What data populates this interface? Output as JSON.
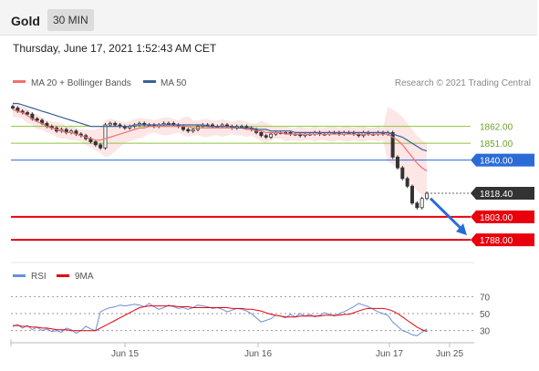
{
  "header": {
    "title": "Gold",
    "timeframe": "30 MIN"
  },
  "timestamp": "Thursday, June 17, 2021 1:52:43 AM CET",
  "legend": {
    "ma20": "MA 20 + Bollinger Bands",
    "ma50": "MA 50",
    "credit": "Research © 2021 Trading Central"
  },
  "rsi_legend": {
    "rsi": "RSI",
    "ma9": "9MA"
  },
  "colors": {
    "ma20": "#f07070",
    "ma50": "#3a5f9a",
    "band": "#fde3e3",
    "support": "#e8000b",
    "resistance": "#8fc43a",
    "pivot": "#2a6bd8",
    "current": "#333333",
    "rsi": "#6a8fd8",
    "rsi_ma": "#e8000b"
  },
  "chart_data": [
    {
      "type": "candlestick",
      "title": "",
      "ylim": [
        1775,
        1885
      ],
      "x_ticks": [
        "Jun 15",
        "Jun 16",
        "Jun 17",
        "Jun 25"
      ],
      "levels": [
        {
          "label": "1862.00",
          "value": 1862,
          "kind": "resistance"
        },
        {
          "label": "1851.00",
          "value": 1851,
          "kind": "resistance"
        },
        {
          "label": "1840.00",
          "value": 1840,
          "kind": "pivot"
        },
        {
          "label": "1818.40",
          "value": 1818.4,
          "kind": "current"
        },
        {
          "label": "1803.00",
          "value": 1803,
          "kind": "support"
        },
        {
          "label": "1788.00",
          "value": 1788,
          "kind": "support"
        }
      ],
      "close_series": [
        1874,
        1872,
        1871,
        1870,
        1867,
        1866,
        1864,
        1862,
        1861,
        1859,
        1860,
        1858,
        1859,
        1857,
        1856,
        1854,
        1852,
        1850,
        1848,
        1863,
        1864,
        1863,
        1862,
        1861,
        1862,
        1863,
        1864,
        1863,
        1863,
        1862,
        1863,
        1864,
        1864,
        1863,
        1862,
        1860,
        1859,
        1860,
        1862,
        1863,
        1863,
        1862,
        1862,
        1863,
        1862,
        1861,
        1862,
        1862,
        1861,
        1860,
        1858,
        1856,
        1855,
        1857,
        1858,
        1858,
        1858,
        1857,
        1857,
        1856,
        1857,
        1857,
        1858,
        1857,
        1857,
        1858,
        1858,
        1857,
        1858,
        1858,
        1857,
        1856,
        1858,
        1857,
        1857,
        1858,
        1857,
        1858,
        1842,
        1835,
        1828,
        1823,
        1812,
        1809,
        1815,
        1818.4
      ],
      "ma20_series": [
        1873,
        1872,
        1871,
        1869,
        1867,
        1865,
        1864,
        1862,
        1861,
        1860,
        1859,
        1858,
        1858,
        1857,
        1856,
        1855,
        1854,
        1853,
        1853,
        1854,
        1855,
        1856,
        1857,
        1858,
        1859,
        1860,
        1861,
        1861,
        1862,
        1862,
        1862,
        1862,
        1862,
        1862,
        1862,
        1862,
        1862,
        1861,
        1861,
        1861,
        1861,
        1861,
        1861,
        1861,
        1861,
        1861,
        1861,
        1861,
        1860,
        1860,
        1859,
        1859,
        1858,
        1858,
        1858,
        1858,
        1857,
        1857,
        1857,
        1857,
        1857,
        1857,
        1857,
        1857,
        1857,
        1857,
        1857,
        1857,
        1857,
        1857,
        1857,
        1857,
        1857,
        1857,
        1857,
        1857,
        1857,
        1857,
        1855,
        1853,
        1850,
        1846,
        1842,
        1838,
        1835,
        1833
      ],
      "ma50_series": [
        1877,
        1877,
        1876,
        1875,
        1874,
        1873,
        1872,
        1871,
        1870,
        1869,
        1868,
        1867,
        1866,
        1865,
        1864,
        1863,
        1862,
        1862,
        1862,
        1862,
        1862,
        1862,
        1862,
        1862,
        1862,
        1863,
        1863,
        1863,
        1863,
        1863,
        1863,
        1863,
        1863,
        1863,
        1863,
        1863,
        1863,
        1863,
        1863,
        1863,
        1862,
        1862,
        1862,
        1862,
        1862,
        1862,
        1861,
        1861,
        1861,
        1861,
        1860,
        1860,
        1860,
        1859,
        1859,
        1859,
        1859,
        1859,
        1858,
        1858,
        1858,
        1858,
        1858,
        1858,
        1858,
        1858,
        1858,
        1858,
        1858,
        1858,
        1858,
        1858,
        1858,
        1858,
        1858,
        1858,
        1858,
        1858,
        1857,
        1856,
        1855,
        1853,
        1851,
        1849,
        1847,
        1846
      ]
    },
    {
      "type": "line",
      "title": "",
      "ylim": [
        20,
        80
      ],
      "y_ticks": [
        "70",
        "50",
        "30"
      ],
      "rsi_series": [
        35,
        37,
        33,
        36,
        31,
        34,
        30,
        32,
        29,
        30,
        28,
        33,
        31,
        27,
        30,
        35,
        32,
        30,
        52,
        55,
        57,
        58,
        60,
        59,
        60,
        61,
        60,
        58,
        62,
        58,
        55,
        57,
        60,
        58,
        56,
        57,
        55,
        57,
        60,
        59,
        58,
        56,
        57,
        55,
        52,
        54,
        56,
        55,
        53,
        50,
        45,
        40,
        42,
        44,
        48,
        47,
        45,
        49,
        46,
        50,
        47,
        49,
        46,
        48,
        51,
        49,
        47,
        50,
        52,
        55,
        58,
        62,
        60,
        58,
        55,
        52,
        50,
        48,
        40,
        35,
        30,
        28,
        25,
        24,
        28,
        32
      ],
      "ma9_series": [
        36,
        36,
        35,
        35,
        34,
        34,
        33,
        33,
        32,
        31,
        31,
        31,
        30,
        30,
        30,
        30,
        30,
        30,
        33,
        36,
        39,
        42,
        45,
        48,
        51,
        54,
        57,
        58,
        59,
        59,
        59,
        59,
        59,
        59,
        58,
        58,
        58,
        57,
        57,
        57,
        57,
        57,
        57,
        57,
        57,
        56,
        56,
        56,
        55,
        55,
        54,
        53,
        51,
        49,
        48,
        47,
        46,
        46,
        46,
        47,
        47,
        47,
        47,
        47,
        48,
        48,
        48,
        48,
        49,
        49,
        51,
        53,
        55,
        56,
        56,
        56,
        56,
        55,
        53,
        50,
        46,
        42,
        38,
        34,
        31,
        29
      ]
    }
  ]
}
